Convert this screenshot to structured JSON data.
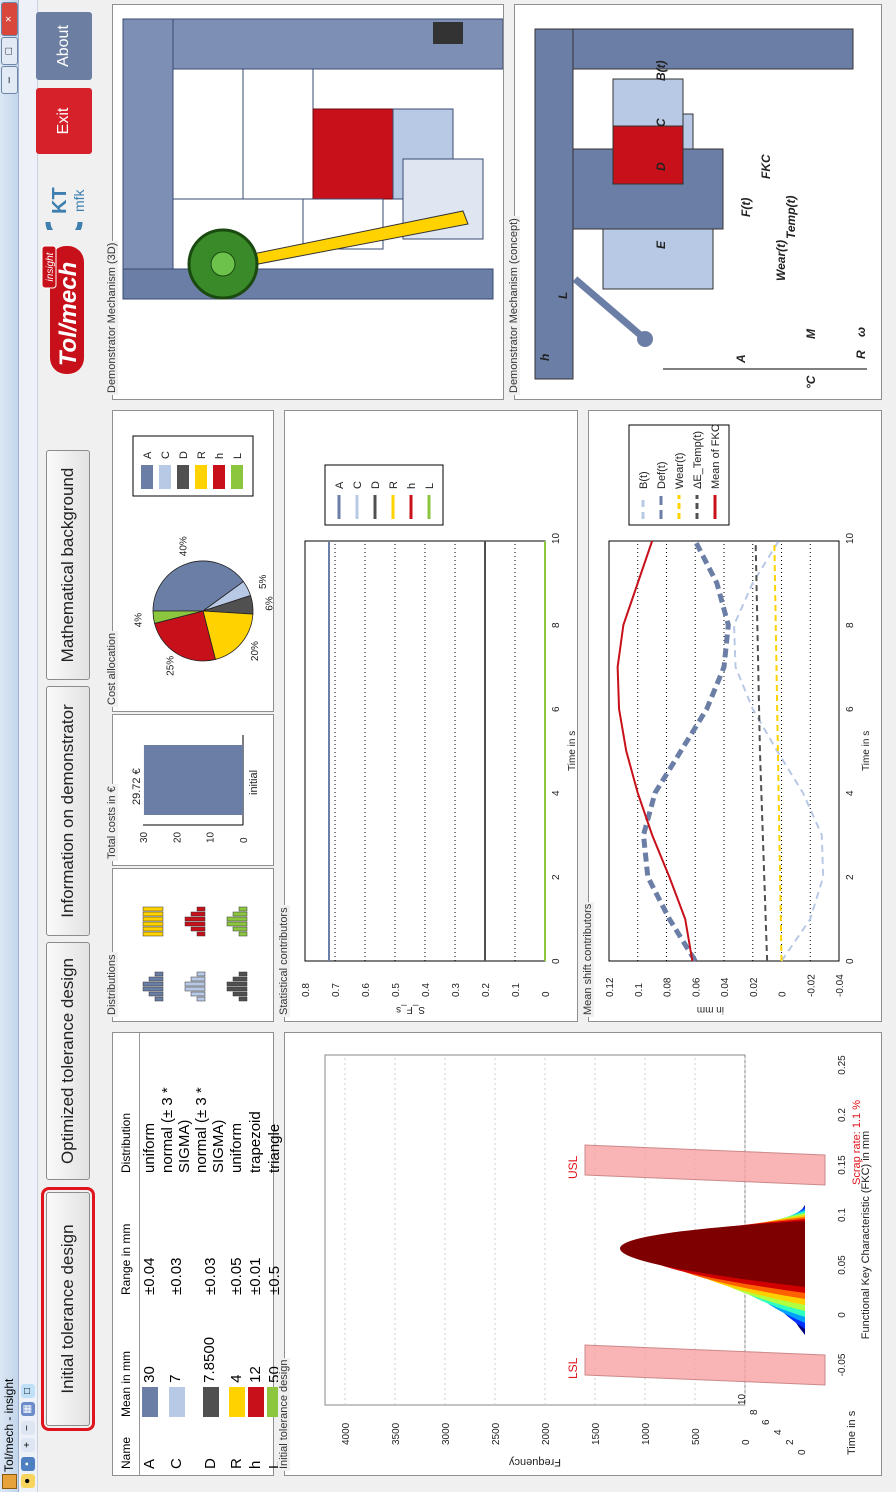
{
  "window": {
    "title": "Tol/mech - insight",
    "minimize": "–",
    "maximize": "□",
    "close": "×"
  },
  "tabs": [
    {
      "label": "Initial tolerance design",
      "active": true
    },
    {
      "label": "Optimized tolerance design",
      "active": false
    },
    {
      "label": "Information on demonstrator",
      "active": false
    },
    {
      "label": "Mathematical background",
      "active": false
    }
  ],
  "logos": {
    "tolmech": "Tol/mech",
    "tolmech_tag": "insight",
    "kit": "KT",
    "kit_sub": "mfk"
  },
  "buttons": {
    "exit": "Exit",
    "about": "About"
  },
  "colors": {
    "accent_red": "#e0141c",
    "exit_bg": "#d7212a",
    "about_bg": "#6c7fa3"
  },
  "params_table": {
    "headers": [
      "Name",
      "Mean in mm",
      "Range in mm",
      "Distribution"
    ],
    "rows": [
      {
        "name": "A",
        "color": "#6b7ea6",
        "mean": "30",
        "range": "±0.04",
        "dist": "uniform"
      },
      {
        "name": "C",
        "color": "#b8c9e6",
        "mean": "7",
        "range": "±0.03",
        "dist": "normal (± 3 * SIGMA)"
      },
      {
        "name": "D",
        "color": "#505050",
        "mean": "7.8500",
        "range": "±0.03",
        "dist": "normal (± 3 * SIGMA)"
      },
      {
        "name": "R",
        "color": "#ffd200",
        "mean": "4",
        "range": "±0.05",
        "dist": "uniform"
      },
      {
        "name": "h",
        "color": "#c8101a",
        "mean": "12",
        "range": "±0.01",
        "dist": "trapezoid"
      },
      {
        "name": "L",
        "color": "#8cc63e",
        "mean": "50",
        "range": "±0.5",
        "dist": "triangle"
      }
    ]
  },
  "panels": {
    "initial_design": "Initial tolerance design",
    "distributions": "Distributions",
    "total_costs": "Total costs in €",
    "cost_allocation": "Cost allocation",
    "statistical": "Statistical contributors",
    "mean_shift": "Mean shift contributors",
    "mech3d": "Demonstrator Mechanism (3D)",
    "concept": "Demonstrator Mechanism (concept)"
  },
  "histogram3d": {
    "zlabel": "Frequency",
    "z_ticks": [
      "0",
      "500",
      "1000",
      "1500",
      "2000",
      "2500",
      "3000",
      "3500",
      "4000"
    ],
    "time_label": "Time in s",
    "time_ticks": [
      "0",
      "2",
      "4",
      "6",
      "8",
      "10"
    ],
    "xlabel": "Functional Key Characteristic (FKC) in mm",
    "x_ticks": [
      "-0.05",
      "0",
      "0.05",
      "0.1",
      "0.15",
      "0.2",
      "0.25"
    ],
    "lsl": "LSL",
    "usl": "USL",
    "scrap_rate": "Scrap rate: 1.1 %"
  },
  "chart_data": [
    {
      "type": "bar",
      "categories": [
        "initial"
      ],
      "values": [
        29.72
      ],
      "data_label": "29.72 €",
      "ylim": [
        0,
        30
      ],
      "y_ticks": [
        "0",
        "10",
        "20",
        "30"
      ],
      "title": "Total costs in €"
    },
    {
      "type": "pie",
      "title": "Cost allocation",
      "labels": [
        "A",
        "C",
        "D",
        "R",
        "h",
        "L"
      ],
      "colors": [
        "#6b7ea6",
        "#b8c9e6",
        "#505050",
        "#ffd200",
        "#c8101a",
        "#8cc63e"
      ],
      "values": [
        40,
        5,
        6,
        20,
        25,
        4
      ],
      "pct_labels": [
        "40%",
        "5%",
        "6%",
        "20%",
        "25%",
        "4%"
      ],
      "legend": [
        "A",
        "C",
        "D",
        "R",
        "h",
        "L"
      ]
    },
    {
      "type": "line",
      "title": "Statistical contributors",
      "ylabel": "S_F_s",
      "xlabel": "Time in s",
      "xlim": [
        0,
        10
      ],
      "ylim": [
        0,
        0.8
      ],
      "x_ticks": [
        "0",
        "2",
        "4",
        "6",
        "8",
        "10"
      ],
      "y_ticks": [
        "0",
        "0.1",
        "0.2",
        "0.3",
        "0.4",
        "0.5",
        "0.6",
        "0.7",
        "0.8"
      ],
      "legend": [
        "A",
        "C",
        "D",
        "R",
        "h",
        "L"
      ],
      "series": [
        {
          "name": "A",
          "color": "#6b7ea6",
          "x": [
            0,
            10
          ],
          "y": [
            0.72,
            0.72
          ]
        },
        {
          "name": "C",
          "color": "#b8c9e6",
          "x": [
            0,
            10
          ],
          "y": [
            0.2,
            0.2
          ]
        },
        {
          "name": "D",
          "color": "#505050",
          "x": [
            0,
            10
          ],
          "y": [
            0.2,
            0.2
          ]
        },
        {
          "name": "R",
          "color": "#ffd200",
          "x": [
            0,
            10
          ],
          "y": [
            0.0,
            0.0
          ]
        },
        {
          "name": "h",
          "color": "#c8101a",
          "x": [
            0,
            10
          ],
          "y": [
            0.0,
            0.0
          ]
        },
        {
          "name": "L",
          "color": "#8cc63e",
          "x": [
            0,
            10
          ],
          "y": [
            0.0,
            0.0
          ]
        }
      ]
    },
    {
      "type": "line",
      "title": "Mean shift contributors",
      "ylabel": "in mm",
      "xlabel": "Time in s",
      "xlim": [
        0,
        10
      ],
      "ylim": [
        -0.04,
        0.12
      ],
      "x_ticks": [
        "0",
        "2",
        "4",
        "6",
        "8",
        "10"
      ],
      "y_ticks": [
        "-0.04",
        "-0.02",
        "0",
        "0.02",
        "0.04",
        "0.06",
        "0.08",
        "0.1",
        "0.12"
      ],
      "series": [
        {
          "name": "B(t)",
          "color": "#b8c9e6",
          "dash": "7 5",
          "x": [
            0,
            1,
            2,
            3,
            4,
            5,
            6,
            7,
            8,
            9,
            10
          ],
          "y": [
            0.0,
            -0.02,
            -0.029,
            -0.028,
            -0.015,
            0.003,
            0.02,
            0.032,
            0.033,
            0.02,
            0.002
          ]
        },
        {
          "name": "Def(t)",
          "color": "#6b7ea6",
          "dash": "9 5",
          "x": [
            0,
            1,
            2,
            3,
            4,
            5,
            6,
            7,
            8,
            9,
            10
          ],
          "y": [
            0.06,
            0.078,
            0.093,
            0.096,
            0.088,
            0.07,
            0.052,
            0.04,
            0.037,
            0.045,
            0.06
          ]
        },
        {
          "name": "Wear(t)",
          "color": "#ffd200",
          "dash": "6 4",
          "x": [
            0,
            10
          ],
          "y": [
            0.0,
            0.005
          ]
        },
        {
          "name": "ΔE_Temp(t)",
          "color": "#505050",
          "dash": "6 4",
          "x": [
            0,
            5,
            10
          ],
          "y": [
            0.01,
            0.015,
            0.018
          ]
        },
        {
          "name": "Mean of FKC",
          "color": "#c8101a",
          "dash": "",
          "x": [
            0,
            1,
            2,
            3,
            4,
            5,
            6,
            7,
            8,
            9,
            10
          ],
          "y": [
            0.062,
            0.067,
            0.078,
            0.09,
            0.1,
            0.108,
            0.113,
            0.114,
            0.11,
            0.1,
            0.09
          ]
        }
      ]
    }
  ],
  "concept": {
    "labels": [
      "h",
      "A",
      "L",
      "E",
      "D",
      "C",
      "B(t)",
      "F(t)",
      "FKC",
      "Temp(t)",
      "M",
      "Wear(t)",
      "°C",
      "R",
      "ω"
    ]
  }
}
